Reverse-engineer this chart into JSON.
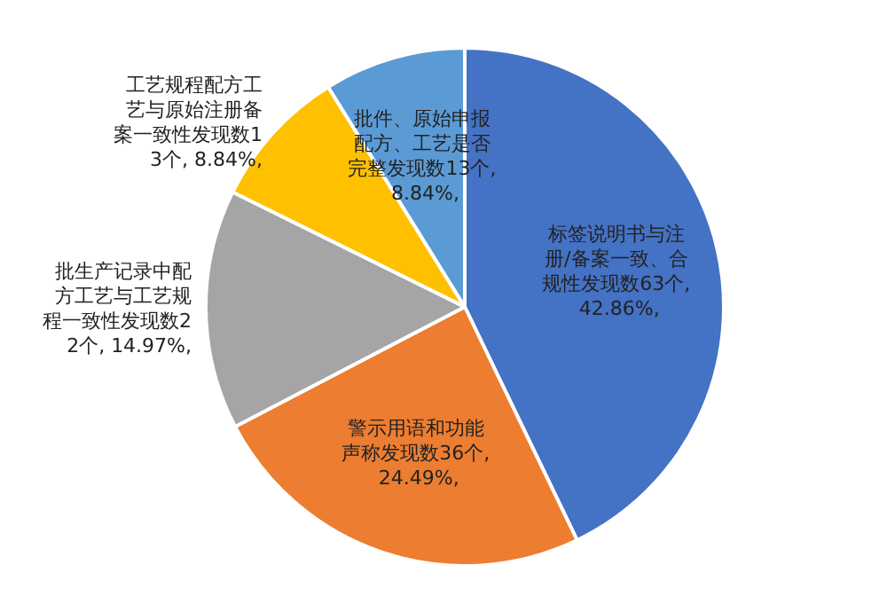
{
  "chart_data": {
    "type": "pie",
    "categories": [
      "标签说明书与注册/备案一致、合规性发现数",
      "警示用语和功能声称发现数",
      "批生产记录中配方工艺与工艺规程一致性发现数",
      "工艺规程配方工艺与原始注册备案一致性发现数",
      "批件、原始申报配方、工艺是否完整发现数"
    ],
    "values": [
      63,
      36,
      22,
      13,
      13
    ],
    "colors": [
      "#4472c4",
      "#ed7d31",
      "#a5a5a5",
      "#ffc000",
      "#5b9bd5"
    ],
    "value_labels": [
      "63个, 42.86%,",
      "36个, 24.49%,",
      "22个, 14.97%,",
      "13个, 8.84%,",
      "13个, 8.84%,"
    ],
    "legend": false
  }
}
